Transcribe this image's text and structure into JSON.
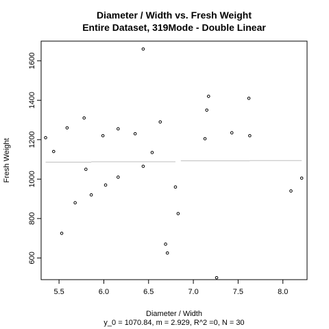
{
  "chart_data": {
    "type": "scatter",
    "title": "Diameter / Width vs. Fresh Weight",
    "subtitle": "Entire Dataset, 319Mode - Double Linear",
    "xlabel": "Diameter / Width",
    "ylabel": "Fresh Weight",
    "footer": "y_0 = 1070.84, m = 2.929, R^2 =0, N = 30",
    "xlim": [
      5.3,
      8.27
    ],
    "ylim": [
      490,
      1700
    ],
    "xticks": [
      5.5,
      6.0,
      6.5,
      7.0,
      7.5,
      8.0
    ],
    "xtick_labels": [
      "5.5",
      "6.0",
      "6.5",
      "7.0",
      "7.5",
      "8.0"
    ],
    "yticks": [
      600,
      800,
      1000,
      1200,
      1400,
      1600
    ],
    "ytick_labels": [
      "600",
      "800",
      "1000",
      "1200",
      "1400",
      "1600"
    ],
    "grid": false,
    "points": [
      {
        "x": 5.35,
        "y": 1210
      },
      {
        "x": 5.44,
        "y": 1140
      },
      {
        "x": 5.53,
        "y": 725
      },
      {
        "x": 5.59,
        "y": 1260
      },
      {
        "x": 5.68,
        "y": 880
      },
      {
        "x": 5.78,
        "y": 1310
      },
      {
        "x": 5.8,
        "y": 1050
      },
      {
        "x": 5.86,
        "y": 920
      },
      {
        "x": 5.99,
        "y": 1220
      },
      {
        "x": 6.02,
        "y": 970
      },
      {
        "x": 6.16,
        "y": 1010
      },
      {
        "x": 6.16,
        "y": 1255
      },
      {
        "x": 6.35,
        "y": 1230
      },
      {
        "x": 6.44,
        "y": 1065
      },
      {
        "x": 6.44,
        "y": 1660
      },
      {
        "x": 6.54,
        "y": 1135
      },
      {
        "x": 6.63,
        "y": 1290
      },
      {
        "x": 6.69,
        "y": 670
      },
      {
        "x": 6.71,
        "y": 625
      },
      {
        "x": 6.8,
        "y": 960
      },
      {
        "x": 6.83,
        "y": 825
      },
      {
        "x": 7.13,
        "y": 1205
      },
      {
        "x": 7.15,
        "y": 1350
      },
      {
        "x": 7.17,
        "y": 1420
      },
      {
        "x": 7.26,
        "y": 500
      },
      {
        "x": 7.43,
        "y": 1235
      },
      {
        "x": 7.62,
        "y": 1410
      },
      {
        "x": 7.63,
        "y": 1220
      },
      {
        "x": 8.09,
        "y": 940
      },
      {
        "x": 8.21,
        "y": 1005
      }
    ],
    "fit_segments": [
      {
        "x": [
          5.35,
          5.86
        ],
        "y": [
          1086,
          1086
        ]
      },
      {
        "x": [
          5.86,
          6.8
        ],
        "y": [
          1088,
          1088
        ]
      },
      {
        "x": [
          6.86,
          7.63
        ],
        "y": [
          1093,
          1093
        ]
      },
      {
        "x": [
          7.63,
          8.21
        ],
        "y": [
          1094,
          1094
        ]
      }
    ],
    "colors": {
      "points": "#000000",
      "fit_line": "#bdbdbd",
      "axes": "#000000"
    }
  }
}
